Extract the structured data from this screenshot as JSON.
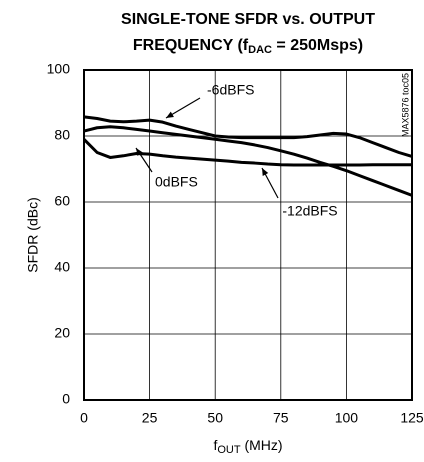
{
  "chart_data": {
    "type": "line",
    "title": [
      "SINGLE-TONE SFDR vs. OUTPUT",
      "FREQUENCY (f",
      "DAC",
      " = 250Msps)"
    ],
    "x_label": [
      "f",
      "OUT",
      " (MHz)"
    ],
    "y_label": "SFDR (dBc)",
    "watermark": "MAX5876 toc05",
    "x": [
      0,
      5,
      10,
      15,
      20,
      25,
      30,
      35,
      40,
      45,
      50,
      55,
      60,
      65,
      70,
      75,
      80,
      85,
      90,
      95,
      100,
      105,
      110,
      115,
      120,
      125
    ],
    "series": [
      {
        "name": "-6dBFS",
        "color": "#000000",
        "values": [
          85.8,
          85.3,
          84.5,
          84.3,
          84.5,
          84.8,
          84.2,
          83,
          82,
          81,
          80,
          79.7,
          79.5,
          79.5,
          79.5,
          79.5,
          79.5,
          79.8,
          80.3,
          80.8,
          80.6,
          79.5,
          78,
          76.5,
          75,
          73.8
        ]
      },
      {
        "name": "0dBFS",
        "color": "#000000",
        "values": [
          81.5,
          82.5,
          82.8,
          82.5,
          82,
          81.5,
          81,
          80.5,
          80,
          79.5,
          79,
          78.5,
          78,
          77.3,
          76.5,
          75.5,
          74.5,
          73.3,
          72,
          70.8,
          69.5,
          68,
          66.5,
          65,
          63.5,
          62
        ]
      },
      {
        "name": "-12dBFS",
        "color": "#000000",
        "values": [
          79,
          75,
          73.5,
          74,
          74.7,
          74.5,
          74,
          73.6,
          73.3,
          73,
          72.7,
          72.4,
          72,
          71.8,
          71.5,
          71.3,
          71.2,
          71.2,
          71.2,
          71.2,
          71.2,
          71.2,
          71.3,
          71.3,
          71.3,
          71.3
        ]
      }
    ],
    "xlim": [
      0,
      125
    ],
    "xticks": [
      0,
      25,
      50,
      75,
      100,
      125
    ],
    "ylim": [
      0,
      100
    ],
    "yticks": [
      0,
      20,
      40,
      60,
      80,
      100
    ],
    "grid": true
  }
}
